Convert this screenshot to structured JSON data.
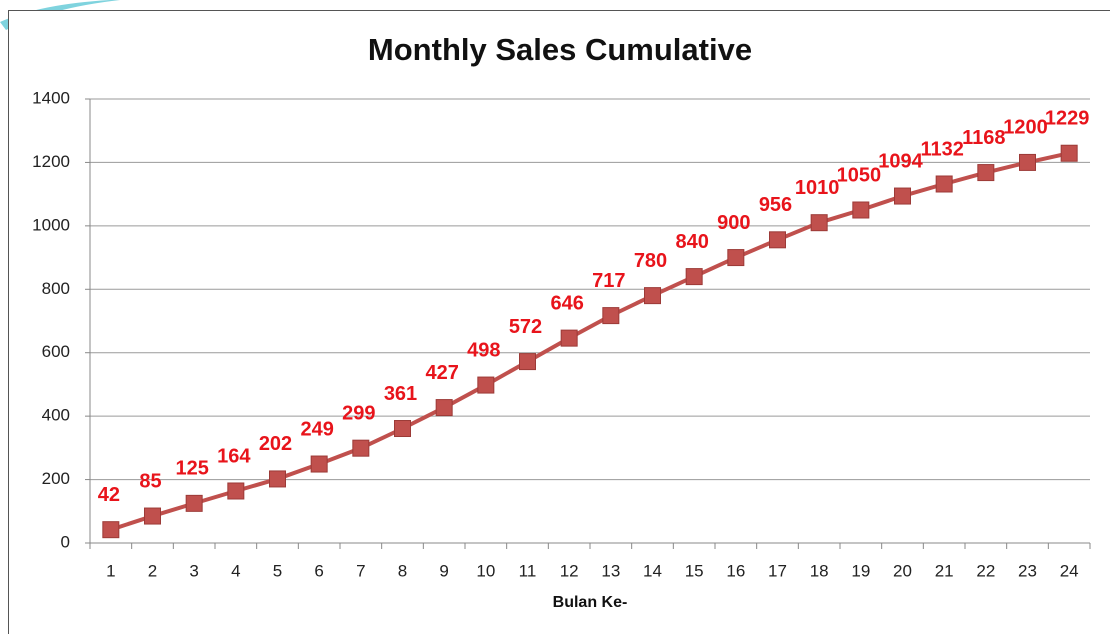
{
  "chart_data": {
    "type": "line",
    "title": "Monthly Sales Cumulative",
    "x_label": "Bulan Ke-",
    "categories": [
      "1",
      "2",
      "3",
      "4",
      "5",
      "6",
      "7",
      "8",
      "9",
      "10",
      "11",
      "12",
      "13",
      "14",
      "15",
      "16",
      "17",
      "18",
      "19",
      "20",
      "21",
      "22",
      "23",
      "24"
    ],
    "values": [
      42,
      85,
      125,
      164,
      202,
      249,
      299,
      361,
      427,
      498,
      572,
      646,
      717,
      780,
      840,
      900,
      956,
      1010,
      1050,
      1094,
      1132,
      1168,
      1200,
      1229
    ],
    "color": "#c0504d",
    "label_color": "#e8141b",
    "ylim": [
      0,
      1400
    ],
    "yticks": [
      0,
      200,
      400,
      600,
      800,
      1000,
      1200,
      1400
    ],
    "grid": true
  }
}
